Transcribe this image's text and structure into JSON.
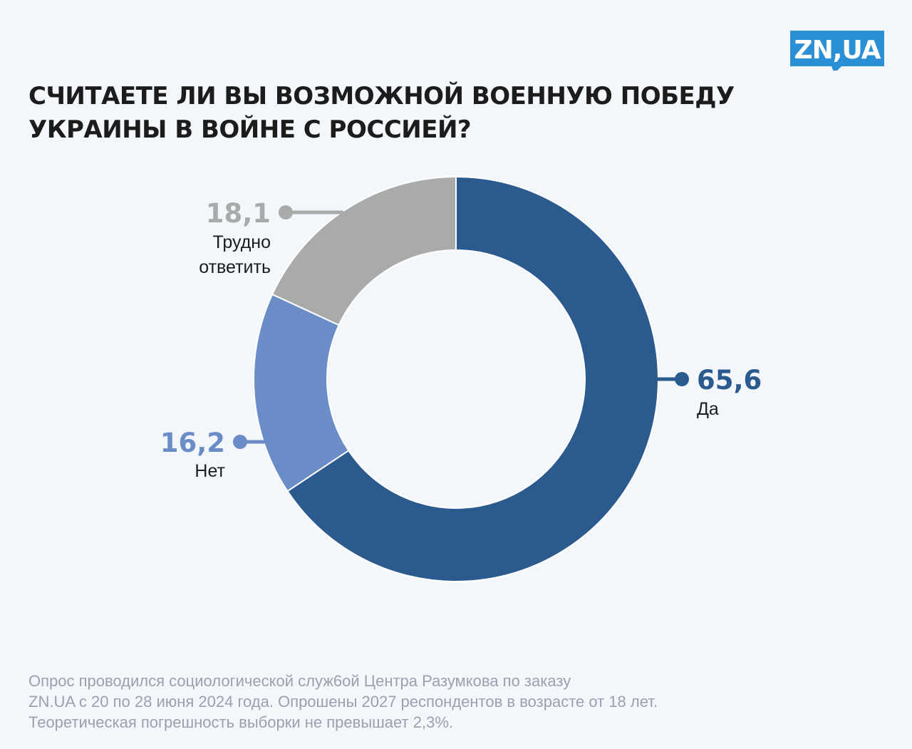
{
  "logo": {
    "text": "ZN,UA",
    "color": "#2b8fd6"
  },
  "header": {
    "title_lines": [
      "СЧИТАЕТЕ ЛИ ВЫ ВОЗМОЖНОЙ ВОЕННУЮ ПОБЕДУ",
      "УКРАИНЫ В ВОЙНЕ С РОССИЕЙ?"
    ]
  },
  "chart_data": {
    "type": "pie",
    "style": "donut",
    "title": "СЧИТАЕТЕ ЛИ ВЫ ВОЗМОЖНОЙ ВОЕННУЮ ПОБЕДУ УКРАИНЫ В ВОЙНЕ С РОССИЕЙ?",
    "slices": [
      {
        "label": "Да",
        "value": 65.6,
        "display": "65,6",
        "color": "#2b5a8e",
        "label_color": "#2b5a8e"
      },
      {
        "label": "Нет",
        "value": 16.2,
        "display": "16,2",
        "color": "#6a8dc8",
        "label_color": "#6a8dc8"
      },
      {
        "label": "Трудно ответить",
        "label_lines": [
          "Трудно",
          "ответить"
        ],
        "value": 18.1,
        "display": "18,1",
        "color": "#a9abab",
        "label_color": "#a9abab"
      }
    ]
  },
  "footnote": {
    "lines": [
      "Опрос проводился социологической служ6ой Центра Разумкова по заказу",
      "ZN.UA с 20 по 28 июня 2024 года. Опрошены 2027 респондентов в возрасте от 18 лет.",
      "Теоретическая погрешность выборки не превышает 2,3%."
    ]
  }
}
